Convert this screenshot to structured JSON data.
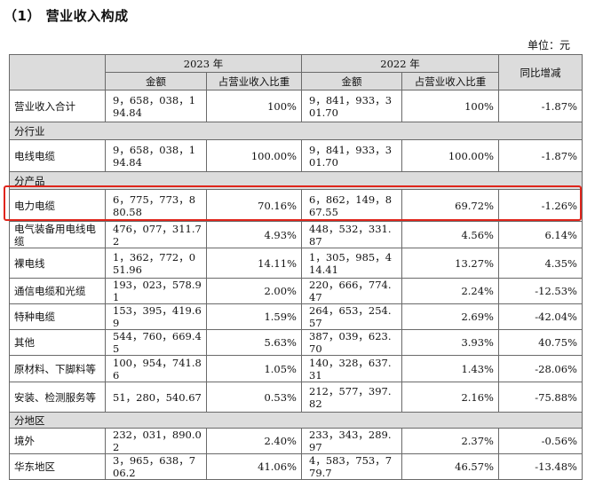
{
  "page": {
    "title": "（1） 营业收入构成",
    "unit": "单位：元"
  },
  "table": {
    "headers": {
      "blank": "",
      "year_2023": "2023 年",
      "year_2022": "2022 年",
      "yoy": "同比增减",
      "amount": "金额",
      "ratio": "占营业收入比重"
    },
    "rows": [
      {
        "type": "data",
        "label": "营业收入合计",
        "amt2023": "9，658，038，194.84",
        "pct2023": "100%",
        "amt2022": "9，841，933，301.70",
        "pct2022": "100%",
        "yoy": "-1.87%"
      },
      {
        "type": "section",
        "label": "分行业"
      },
      {
        "type": "data",
        "label": "电线电缆",
        "amt2023": "9，658，038，194.84",
        "pct2023": "100.00%",
        "amt2022": "9，841，933，301.70",
        "pct2022": "100.00%",
        "yoy": "-1.87%"
      },
      {
        "type": "section",
        "label": "分产品"
      },
      {
        "type": "data",
        "label": "电力电缆",
        "amt2023": "6，775，773，880.58",
        "pct2023": "70.16%",
        "amt2022": "6，862，149，867.55",
        "pct2022": "69.72%",
        "yoy": "-1.26%"
      },
      {
        "type": "data",
        "label": "电气装备用电线电缆",
        "amt2023": "476，077，311.72",
        "pct2023": "4.93%",
        "amt2022": "448，532，331.87",
        "pct2022": "4.56%",
        "yoy": "6.14%"
      },
      {
        "type": "data",
        "label": "裸电线",
        "amt2023": "1，362，772，051.96",
        "pct2023": "14.11%",
        "amt2022": "1，305，985，414.41",
        "pct2022": "13.27%",
        "yoy": "4.35%"
      },
      {
        "type": "data",
        "label": "通信电缆和光缆",
        "amt2023": "193，023，578.91",
        "pct2023": "2.00%",
        "amt2022": "220，666，774.47",
        "pct2022": "2.24%",
        "yoy": "-12.53%"
      },
      {
        "type": "data",
        "label": "特种电缆",
        "amt2023": "153，395，419.69",
        "pct2023": "1.59%",
        "amt2022": "264，653，254.57",
        "pct2022": "2.69%",
        "yoy": "-42.04%"
      },
      {
        "type": "data",
        "label": "其他",
        "amt2023": "544，760，669.45",
        "pct2023": "5.63%",
        "amt2022": "387，039，623.70",
        "pct2022": "3.93%",
        "yoy": "40.75%"
      },
      {
        "type": "data",
        "label": "原材料、下脚料等",
        "amt2023": "100，954，741.86",
        "pct2023": "1.05%",
        "amt2022": "140，328，637.31",
        "pct2022": "1.43%",
        "yoy": "-28.06%"
      },
      {
        "type": "data",
        "label": "安装、检测服务等",
        "amt2023": "51，280，540.67",
        "pct2023": "0.53%",
        "amt2022": "212，577，397.82",
        "pct2022": "2.16%",
        "yoy": "-75.88%"
      },
      {
        "type": "section",
        "label": "分地区"
      },
      {
        "type": "data",
        "label": "境外",
        "amt2023": "232，031，890.02",
        "pct2023": "2.40%",
        "amt2022": "233，343，289.97",
        "pct2022": "2.37%",
        "yoy": "-0.56%"
      },
      {
        "type": "data",
        "label": "华东地区",
        "amt2023": "3，965，638，706.2",
        "pct2023": "41.06%",
        "amt2022": "4，583，753，779.7",
        "pct2022": "46.57%",
        "yoy": "-13.48%"
      }
    ]
  },
  "highlight": {
    "row": "电力电缆",
    "color": "#e0251b"
  }
}
